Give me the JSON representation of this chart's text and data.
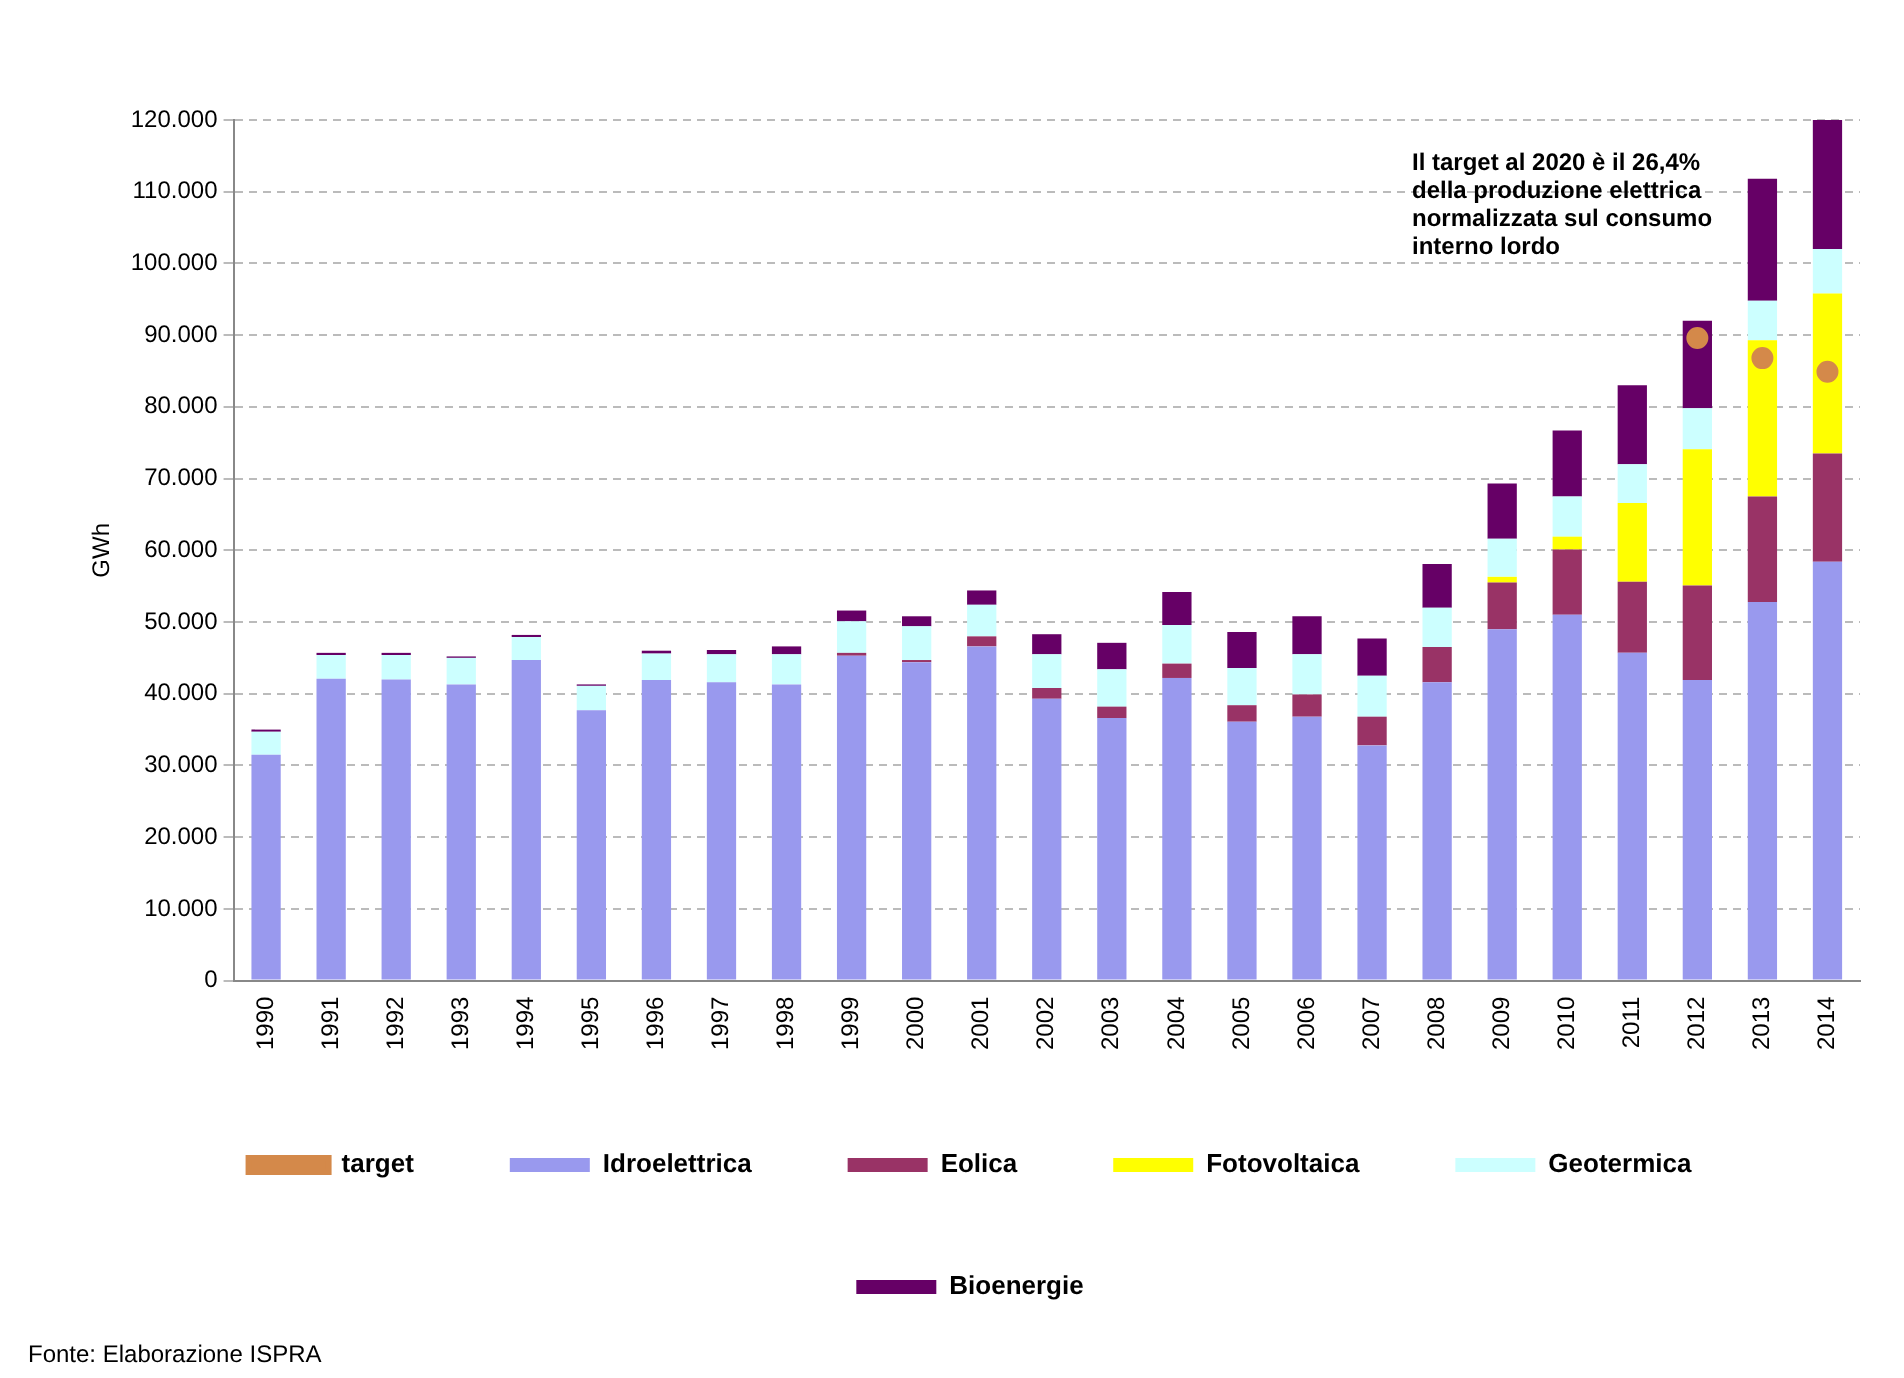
{
  "chart_data": {
    "type": "bar",
    "stacked": true,
    "ylabel": "GWh",
    "legend": "bottom",
    "grid": "y",
    "line_style": "dashed",
    "categories": [
      "1990",
      "1991",
      "1992",
      "1993",
      "1994",
      "1995",
      "1996",
      "1997",
      "1998",
      "1999",
      "2000",
      "2001",
      "2002",
      "2003",
      "2004",
      "2005",
      "2006",
      "2007",
      "2008",
      "2009",
      "2010",
      "2011",
      "2012",
      "2013",
      "2014"
    ],
    "ylim": [
      0,
      120000
    ],
    "yticks": [
      {
        "value": 0,
        "label": "0"
      },
      {
        "value": 10000,
        "label": "10.000"
      },
      {
        "value": 20000,
        "label": "20.000"
      },
      {
        "value": 30000,
        "label": "30.000"
      },
      {
        "value": 40000,
        "label": "40.000"
      },
      {
        "value": 50000,
        "label": "50.000"
      },
      {
        "value": 60000,
        "label": "60.000"
      },
      {
        "value": 70000,
        "label": "70.000"
      },
      {
        "value": 80000,
        "label": "80.000"
      },
      {
        "value": 90000,
        "label": "90.000"
      },
      {
        "value": 100000,
        "label": "100.000"
      },
      {
        "value": 110000,
        "label": "110.000"
      },
      {
        "value": 120000,
        "label": "120.000"
      }
    ],
    "series": [
      {
        "name": "Idroelettrica",
        "color": "#9999ee",
        "values": [
          31500,
          42100,
          42000,
          41300,
          44700,
          37700,
          41900,
          41600,
          41300,
          45300,
          44400,
          46600,
          39300,
          36600,
          42200,
          36100,
          36800,
          32800,
          41600,
          49000,
          51000,
          45700,
          41900,
          52800,
          58400
        ]
      },
      {
        "name": "Eolica",
        "color": "#993366",
        "values": [
          0,
          0,
          0,
          0,
          0,
          0,
          0,
          0,
          0,
          400,
          300,
          1400,
          1500,
          1600,
          2000,
          2300,
          3100,
          4000,
          4900,
          6500,
          9100,
          9900,
          13200,
          14700,
          15100
        ]
      },
      {
        "name": "Fotovoltaica",
        "color": "#ffff00",
        "values": [
          0,
          0,
          0,
          0,
          0,
          0,
          0,
          0,
          0,
          0,
          0,
          0,
          0,
          0,
          0,
          0,
          0,
          0,
          0,
          800,
          1800,
          11000,
          19000,
          21800,
          22300
        ]
      },
      {
        "name": "Geotermica",
        "color": "#ccffff",
        "values": [
          3200,
          3300,
          3400,
          3700,
          3200,
          3400,
          3700,
          3900,
          4200,
          4400,
          4700,
          4400,
          4700,
          5200,
          5400,
          5200,
          5600,
          5700,
          5500,
          5300,
          5600,
          5400,
          5700,
          5500,
          6200
        ]
      },
      {
        "name": "Bioenergie",
        "color": "#660066",
        "values": [
          300,
          300,
          300,
          200,
          300,
          200,
          400,
          600,
          1100,
          1500,
          1400,
          2000,
          2800,
          3700,
          4600,
          5000,
          5300,
          5200,
          6100,
          7700,
          9200,
          11000,
          12200,
          17000,
          18000
        ]
      },
      {
        "name": "target",
        "type": "scatter",
        "marker": "circle",
        "color": "#d4894a",
        "values": [
          null,
          null,
          null,
          null,
          null,
          null,
          null,
          null,
          null,
          null,
          null,
          null,
          null,
          null,
          null,
          null,
          null,
          null,
          null,
          null,
          null,
          null,
          89600,
          86800,
          84900
        ]
      }
    ],
    "annotations": [
      "Il target al 2020 è il 26,4%\ndella produzione elettrica\nnormalizzata sul consumo\ninterno lordo",
      "Fonte: Elaborazione ISPRA"
    ]
  }
}
